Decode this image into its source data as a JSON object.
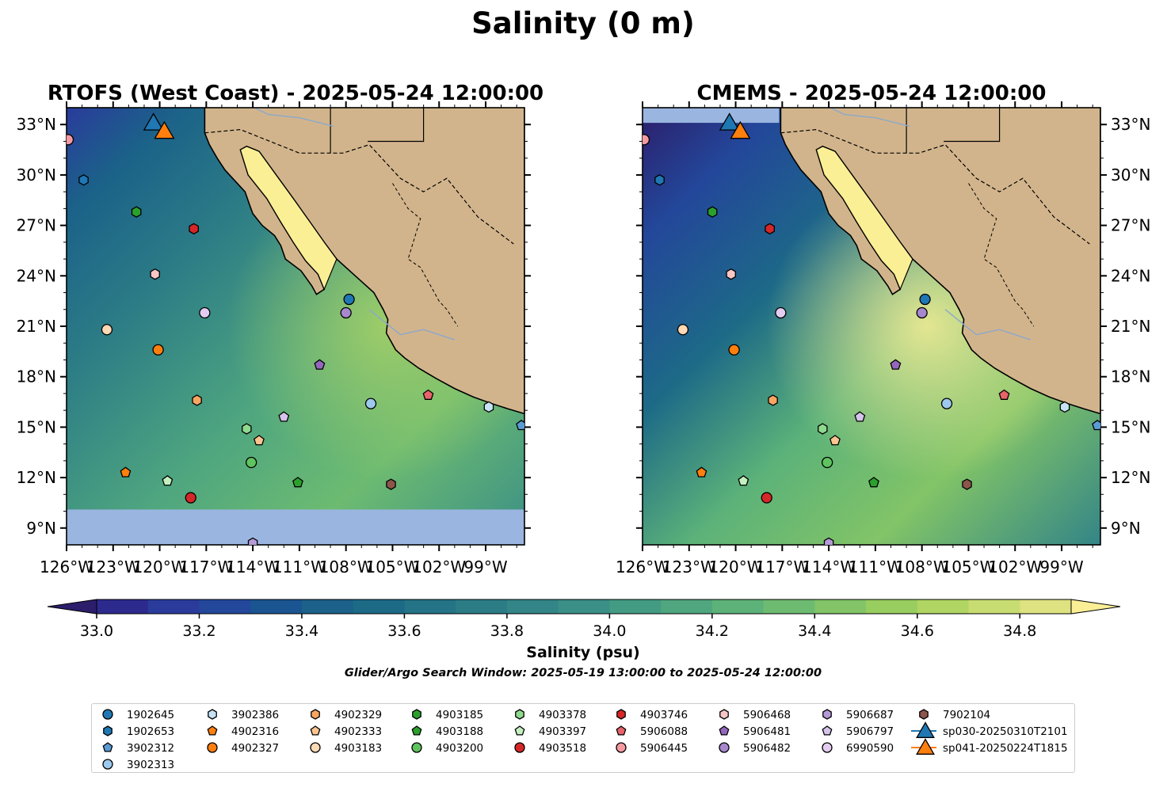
{
  "chart_data": {
    "type": "scatter",
    "title": "Salinity (0 m)",
    "panels": [
      {
        "id": "rtofs",
        "title": "RTOFS (West Coast) - 2025-05-24 12:00:00"
      },
      {
        "id": "cmems",
        "title": "CMEMS - 2025-05-24 12:00:00"
      }
    ],
    "lon_range": [
      -126,
      -96.5
    ],
    "lat_range": [
      8,
      34
    ],
    "lon_ticks": [
      -126,
      -123,
      -120,
      -117,
      -114,
      -111,
      -108,
      -105,
      -102,
      -99
    ],
    "lon_tick_labels": [
      "126°W",
      "123°W",
      "120°W",
      "117°W",
      "114°W",
      "111°W",
      "108°W",
      "105°W",
      "102°W",
      "99°W"
    ],
    "lat_ticks": [
      9,
      12,
      15,
      18,
      21,
      24,
      27,
      30,
      33
    ],
    "lat_tick_labels": [
      "9°N",
      "12°N",
      "15°N",
      "18°N",
      "21°N",
      "24°N",
      "27°N",
      "30°N",
      "33°N"
    ],
    "colorbar": {
      "label": "Salinity (psu)",
      "min": 33.0,
      "max": 34.9,
      "step": 0.1,
      "ticks": [
        33.0,
        33.2,
        33.4,
        33.6,
        33.8,
        34.0,
        34.2,
        34.4,
        34.6,
        34.8
      ],
      "tick_labels": [
        "33.0",
        "33.2",
        "33.4",
        "33.6",
        "33.8",
        "34.0",
        "34.2",
        "34.4",
        "34.6",
        "34.8"
      ],
      "colors": [
        "#2c1e6b",
        "#2d2a8e",
        "#2a3b9c",
        "#23479a",
        "#1a5591",
        "#1b6189",
        "#1d6a87",
        "#247386",
        "#2c7c86",
        "#338587",
        "#3a8f86",
        "#439b83",
        "#4fa67f",
        "#5cb279",
        "#6dbb71",
        "#82c467",
        "#98cd5f",
        "#b0d563",
        "#c7dd72",
        "#dee280",
        "#fbef96"
      ]
    },
    "subtitle": "Glider/Argo Search Window: 2025-05-19 13:00:00 to 2025-05-24 12:00:00",
    "series": [
      {
        "name": "1902645",
        "marker": "circle",
        "color": "#1f77b4",
        "lon": -107.8,
        "lat": 22.6
      },
      {
        "name": "1902653",
        "marker": "hexagon",
        "color": "#1f77b4",
        "lon": -124.9,
        "lat": 29.7
      },
      {
        "name": "3902312",
        "marker": "pentagon",
        "color": "#5b9bd5",
        "lon": -96.7,
        "lat": 15.1
      },
      {
        "name": "3902313",
        "marker": "circle",
        "color": "#9ec9ee",
        "lon": -106.4,
        "lat": 16.4
      },
      {
        "name": "3902386",
        "marker": "hexagon",
        "color": "#c6e2f5",
        "lon": -98.8,
        "lat": 16.2
      },
      {
        "name": "4902316",
        "marker": "pentagon",
        "color": "#ff7f0e",
        "lon": -122.2,
        "lat": 12.3
      },
      {
        "name": "4902327",
        "marker": "circle",
        "color": "#ff7f0e",
        "lon": -120.1,
        "lat": 19.6
      },
      {
        "name": "4902329",
        "marker": "hexagon",
        "color": "#f9a560",
        "lon": -117.6,
        "lat": 16.6
      },
      {
        "name": "4902333",
        "marker": "pentagon",
        "color": "#fdc48f",
        "lon": -113.6,
        "lat": 14.2
      },
      {
        "name": "4903183",
        "marker": "circle",
        "color": "#fdd9b5",
        "lon": -123.4,
        "lat": 20.8
      },
      {
        "name": "4903185",
        "marker": "hexagon",
        "color": "#2ca02c",
        "lon": -121.5,
        "lat": 27.8
      },
      {
        "name": "4903188",
        "marker": "pentagon",
        "color": "#2ca02c",
        "lon": -111.1,
        "lat": 11.7
      },
      {
        "name": "4903200",
        "marker": "circle",
        "color": "#5fc45f",
        "lon": -114.1,
        "lat": 12.9
      },
      {
        "name": "4903378",
        "marker": "hexagon",
        "color": "#8fd98f",
        "lon": -114.4,
        "lat": 14.9
      },
      {
        "name": "4903397",
        "marker": "pentagon",
        "color": "#c4f0c0",
        "lon": -119.5,
        "lat": 11.8
      },
      {
        "name": "4903518",
        "marker": "circle",
        "color": "#d62728",
        "lon": -118.0,
        "lat": 10.8
      },
      {
        "name": "4903746",
        "marker": "hexagon",
        "color": "#d62728",
        "lon": -117.8,
        "lat": 26.8
      },
      {
        "name": "5906088",
        "marker": "pentagon",
        "color": "#e8636a",
        "lon": -102.7,
        "lat": 16.9
      },
      {
        "name": "5906445",
        "marker": "circle",
        "color": "#f59aa0",
        "lon": -125.9,
        "lat": 32.1
      },
      {
        "name": "5906468",
        "marker": "hexagon",
        "color": "#f7c6c7",
        "lon": -120.3,
        "lat": 24.1
      },
      {
        "name": "5906481",
        "marker": "pentagon",
        "color": "#9467bd",
        "lon": -109.7,
        "lat": 18.7
      },
      {
        "name": "5906482",
        "marker": "circle",
        "color": "#a788cf",
        "lon": -108.0,
        "lat": 21.8
      },
      {
        "name": "5906687",
        "marker": "hexagon",
        "color": "#b59ad8",
        "lon": -114.0,
        "lat": 8.1
      },
      {
        "name": "5906797",
        "marker": "pentagon",
        "color": "#d4c3ea",
        "lon": -112.0,
        "lat": 15.6
      },
      {
        "name": "6990590",
        "marker": "circle",
        "color": "#e3cdf0",
        "lon": -117.1,
        "lat": 21.8
      },
      {
        "name": "7902104",
        "marker": "hexagon",
        "color": "#8c564b",
        "lon": -105.1,
        "lat": 11.6
      },
      {
        "name": "sp030-20250310T2101",
        "marker": "triangle",
        "color": "#1f77b4",
        "lon": -120.4,
        "lat": 33.0
      },
      {
        "name": "sp041-20250224T1815",
        "marker": "triangle",
        "color": "#ff7f0e",
        "lon": -119.7,
        "lat": 32.5
      }
    ]
  }
}
